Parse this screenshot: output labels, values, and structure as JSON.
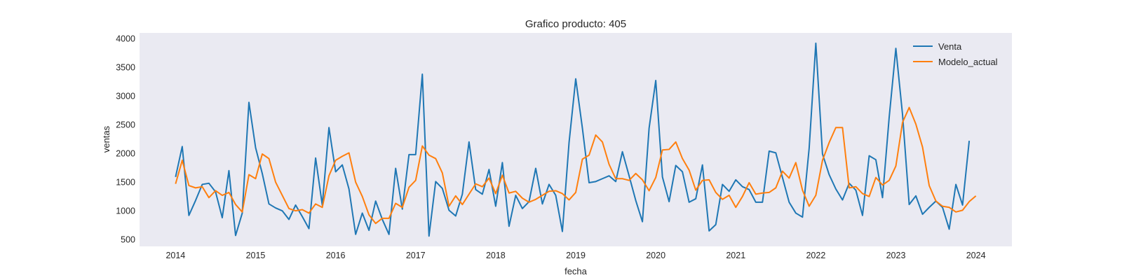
{
  "chart_data": {
    "type": "line",
    "title": "Grafico producto: 405",
    "xlabel": "fecha",
    "ylabel": "ventas",
    "x_start": "2014-01",
    "x_frequency": "monthly",
    "xlim": [
      2013.55,
      2024.45
    ],
    "ylim": [
      380,
      4100
    ],
    "x_ticks": [
      "2014",
      "2015",
      "2016",
      "2017",
      "2018",
      "2019",
      "2020",
      "2021",
      "2022",
      "2023",
      "2024"
    ],
    "y_ticks": [
      "500",
      "1000",
      "1500",
      "2000",
      "2500",
      "3000",
      "3500",
      "4000"
    ],
    "grid": false,
    "background": "#eaeaf2",
    "legend_position": "top-right",
    "series": [
      {
        "name": "Venta",
        "color": "#1f77b4",
        "values": [
          1590,
          2120,
          920,
          1180,
          1460,
          1480,
          1330,
          880,
          1700,
          570,
          960,
          2890,
          2100,
          1650,
          1120,
          1050,
          1000,
          850,
          1100,
          900,
          690,
          1920,
          1100,
          2450,
          1680,
          1800,
          1380,
          590,
          960,
          660,
          1170,
          850,
          590,
          1740,
          1030,
          1980,
          1980,
          3380,
          560,
          1510,
          1390,
          1010,
          910,
          1290,
          2200,
          1370,
          1290,
          1720,
          1080,
          1840,
          730,
          1270,
          1040,
          1160,
          1740,
          1120,
          1460,
          1270,
          640,
          2190,
          3300,
          2440,
          1490,
          1510,
          1560,
          1610,
          1510,
          2030,
          1610,
          1180,
          810,
          2440,
          3270,
          1590,
          1160,
          1790,
          1680,
          1150,
          1210,
          1800,
          650,
          760,
          1460,
          1340,
          1540,
          1420,
          1370,
          1150,
          1150,
          2040,
          2010,
          1580,
          1150,
          960,
          890,
          2090,
          3920,
          1990,
          1630,
          1380,
          1190,
          1480,
          1360,
          920,
          1960,
          1890,
          1230,
          2630,
          3830,
          2680,
          1110,
          1260,
          940,
          1060,
          1170,
          1060,
          680,
          1460,
          1100,
          2220
        ]
      },
      {
        "name": "Modelo_actual",
        "color": "#ff7f0e",
        "values": [
          1470,
          1880,
          1440,
          1400,
          1420,
          1230,
          1350,
          1270,
          1320,
          1110,
          980,
          1630,
          1560,
          1990,
          1910,
          1500,
          1270,
          1040,
          1000,
          1020,
          960,
          1120,
          1060,
          1610,
          1880,
          1950,
          2010,
          1500,
          1250,
          930,
          780,
          870,
          870,
          1130,
          1060,
          1410,
          1530,
          2130,
          1970,
          1910,
          1660,
          1080,
          1260,
          1110,
          1290,
          1470,
          1420,
          1570,
          1300,
          1620,
          1310,
          1340,
          1220,
          1150,
          1200,
          1270,
          1340,
          1350,
          1300,
          1190,
          1320,
          1900,
          1970,
          2320,
          2200,
          1810,
          1560,
          1560,
          1530,
          1650,
          1540,
          1350,
          1580,
          2060,
          2070,
          2200,
          1910,
          1710,
          1360,
          1530,
          1540,
          1320,
          1200,
          1270,
          1060,
          1250,
          1490,
          1290,
          1310,
          1320,
          1400,
          1690,
          1570,
          1840,
          1360,
          1080,
          1270,
          1880,
          2190,
          2450,
          2450,
          1400,
          1420,
          1300,
          1250,
          1580,
          1450,
          1530,
          1780,
          2540,
          2800,
          2510,
          2110,
          1440,
          1170,
          1080,
          1060,
          980,
          1010,
          1160,
          1260
        ]
      }
    ]
  }
}
